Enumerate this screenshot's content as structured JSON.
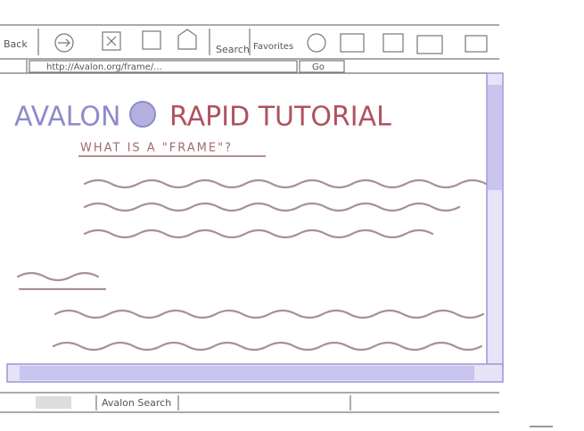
{
  "toolbar": {
    "back": "Back",
    "search": "Search",
    "favorites": "Favorites"
  },
  "address_bar": {
    "url": "http://Avalon.org/frame/...",
    "go": "Go"
  },
  "content": {
    "brand": "AVALON",
    "title": "RAPID TUTORIAL",
    "subtitle": "WHAT IS A \"FRAME\"?"
  },
  "status_bar": {
    "tab": "Avalon Search"
  }
}
